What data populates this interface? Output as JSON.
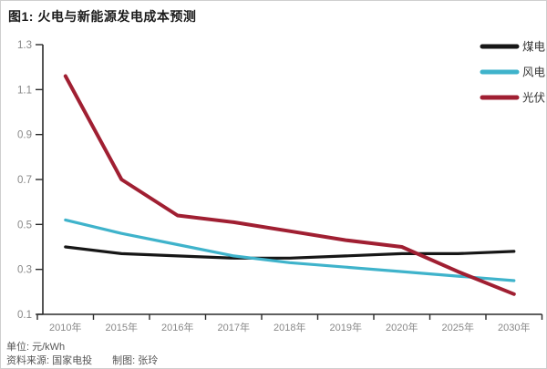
{
  "title": "图1: 火电与新能源发电成本预测",
  "footer": {
    "unit": "单位: 元/kWh",
    "source": "资料来源: 国家电投",
    "credit": "制图: 张玲"
  },
  "colors": {
    "coal": "#161616",
    "wind": "#3fb3cb",
    "solar": "#a01f32",
    "axis": "#2b2b2b",
    "tick_label": "#888888",
    "legend_label": "#333333"
  },
  "chart_data": {
    "type": "line",
    "title": "图1: 火电与新能源发电成本预测",
    "unit_label": "单位: 元/kWh",
    "categories": [
      "2010年",
      "2015年",
      "2016年",
      "2017年",
      "2018年",
      "2019年",
      "2020年",
      "2025年",
      "2030年"
    ],
    "series": [
      {
        "id": "coal",
        "name": "煤电",
        "values": [
          0.4,
          0.37,
          0.36,
          0.35,
          0.35,
          0.36,
          0.37,
          0.37,
          0.38
        ]
      },
      {
        "id": "wind",
        "name": "风电",
        "values": [
          0.52,
          0.46,
          0.41,
          0.36,
          0.33,
          0.31,
          0.29,
          0.27,
          0.25
        ]
      },
      {
        "id": "solar",
        "name": "光伏",
        "values": [
          1.16,
          0.7,
          0.54,
          0.51,
          0.47,
          0.43,
          0.4,
          0.29,
          0.19
        ]
      }
    ],
    "ylim": [
      0.1,
      1.3
    ],
    "yticks": [
      1.3,
      1.1,
      0.9,
      0.7,
      0.5,
      0.3,
      0.1
    ],
    "ytick_labels": [
      "1.3",
      "1.1",
      "0.9",
      "0.7",
      "0.5",
      "0.3",
      "0.1"
    ],
    "grid": false,
    "legend_position": "top-right"
  }
}
